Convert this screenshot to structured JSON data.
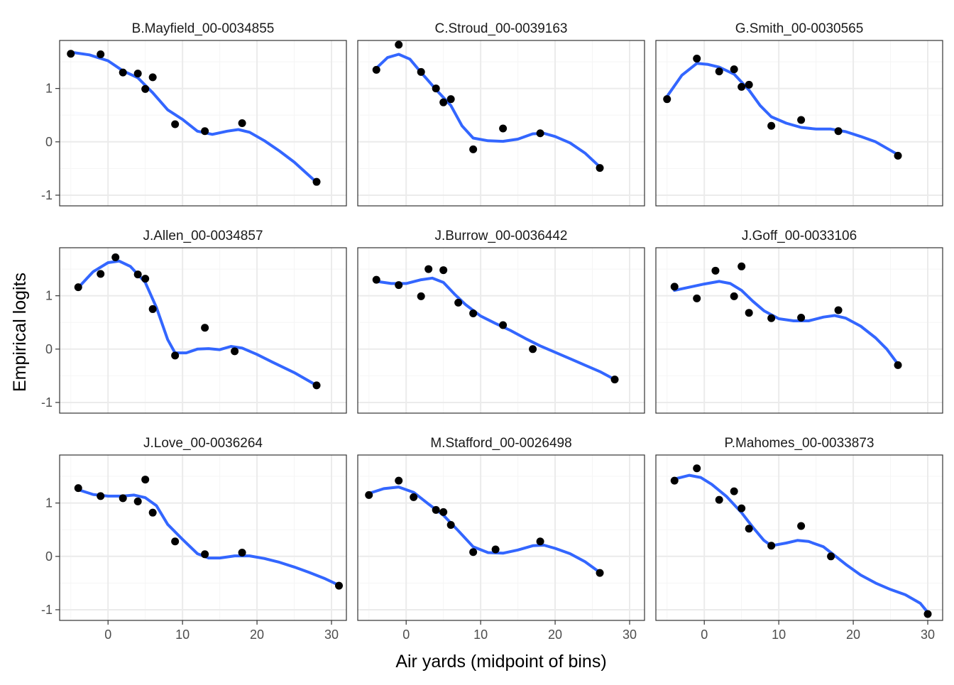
{
  "chart_data": {
    "type": "scatter",
    "layout": "facet-grid 3x3",
    "xlabel": "Air yards (midpoint of bins)",
    "ylabel": "Empirical logits",
    "xlim": [
      -6.5,
      32
    ],
    "ylim": [
      -1.2,
      1.9
    ],
    "x_ticks": [
      0,
      10,
      20,
      30
    ],
    "y_ticks": [
      -1,
      0,
      1
    ],
    "grid": true,
    "colors": {
      "points": "#000000",
      "smooth": "#3366FF",
      "panel_border": "#333333",
      "grid_major": "#EBEBEB",
      "grid_minor": "#F5F5F5"
    },
    "panels": [
      {
        "title": "B.Mayfield_00-0034855",
        "points": [
          [
            -5,
            1.65
          ],
          [
            -1,
            1.64
          ],
          [
            2,
            1.3
          ],
          [
            4,
            1.28
          ],
          [
            5,
            0.99
          ],
          [
            6,
            1.21
          ],
          [
            9,
            0.33
          ],
          [
            13,
            0.2
          ],
          [
            18,
            0.35
          ],
          [
            28,
            -0.75
          ]
        ],
        "smooth": [
          [
            -5,
            1.68
          ],
          [
            -2.5,
            1.63
          ],
          [
            0,
            1.52
          ],
          [
            2,
            1.33
          ],
          [
            4,
            1.2
          ],
          [
            6,
            0.92
          ],
          [
            8,
            0.6
          ],
          [
            10,
            0.42
          ],
          [
            12,
            0.2
          ],
          [
            14,
            0.14
          ],
          [
            16,
            0.2
          ],
          [
            17.5,
            0.23
          ],
          [
            19,
            0.18
          ],
          [
            21,
            0.02
          ],
          [
            23,
            -0.17
          ],
          [
            25,
            -0.38
          ],
          [
            28,
            -0.76
          ]
        ]
      },
      {
        "title": "C.Stroud_00-0039163",
        "points": [
          [
            -4,
            1.35
          ],
          [
            -1,
            1.82
          ],
          [
            2,
            1.31
          ],
          [
            4,
            1
          ],
          [
            5,
            0.74
          ],
          [
            6,
            0.8
          ],
          [
            9,
            -0.14
          ],
          [
            13,
            0.25
          ],
          [
            18,
            0.16
          ],
          [
            26,
            -0.49
          ]
        ],
        "smooth": [
          [
            -4,
            1.38
          ],
          [
            -2.5,
            1.58
          ],
          [
            -1,
            1.64
          ],
          [
            0.5,
            1.55
          ],
          [
            2,
            1.3
          ],
          [
            4,
            0.98
          ],
          [
            6,
            0.68
          ],
          [
            7.5,
            0.3
          ],
          [
            9,
            0.07
          ],
          [
            11,
            0.02
          ],
          [
            13,
            0.01
          ],
          [
            15,
            0.05
          ],
          [
            17,
            0.15
          ],
          [
            18.5,
            0.16
          ],
          [
            20,
            0.1
          ],
          [
            22,
            -0.02
          ],
          [
            24,
            -0.21
          ],
          [
            26,
            -0.47
          ]
        ]
      },
      {
        "title": "G.Smith_00-0030565",
        "points": [
          [
            -5,
            0.8
          ],
          [
            -1,
            1.56
          ],
          [
            2,
            1.32
          ],
          [
            4,
            1.36
          ],
          [
            5,
            1.03
          ],
          [
            6,
            1.07
          ],
          [
            9,
            0.3
          ],
          [
            13,
            0.41
          ],
          [
            18,
            0.2
          ],
          [
            26,
            -0.26
          ]
        ],
        "smooth": [
          [
            -5,
            0.85
          ],
          [
            -3,
            1.25
          ],
          [
            -1,
            1.47
          ],
          [
            0.5,
            1.45
          ],
          [
            2,
            1.4
          ],
          [
            4,
            1.27
          ],
          [
            6,
            0.97
          ],
          [
            7.5,
            0.68
          ],
          [
            9,
            0.47
          ],
          [
            11,
            0.35
          ],
          [
            13,
            0.27
          ],
          [
            15,
            0.24
          ],
          [
            17,
            0.24
          ],
          [
            19,
            0.19
          ],
          [
            21,
            0.1
          ],
          [
            23,
            0
          ],
          [
            26,
            -0.24
          ]
        ]
      },
      {
        "title": "J.Allen_00-0034857",
        "points": [
          [
            -4,
            1.16
          ],
          [
            -1,
            1.41
          ],
          [
            1,
            1.72
          ],
          [
            4,
            1.4
          ],
          [
            5,
            1.32
          ],
          [
            6,
            0.75
          ],
          [
            9,
            -0.12
          ],
          [
            13,
            0.4
          ],
          [
            17,
            -0.04
          ],
          [
            28,
            -0.68
          ]
        ],
        "smooth": [
          [
            -4,
            1.15
          ],
          [
            -2,
            1.45
          ],
          [
            0,
            1.62
          ],
          [
            1.5,
            1.65
          ],
          [
            3,
            1.55
          ],
          [
            5,
            1.25
          ],
          [
            6.5,
            0.78
          ],
          [
            8,
            0.18
          ],
          [
            9,
            -0.07
          ],
          [
            10.5,
            -0.07
          ],
          [
            12,
            0
          ],
          [
            13.5,
            0.01
          ],
          [
            15,
            -0.01
          ],
          [
            16.5,
            0.05
          ],
          [
            18,
            0.02
          ],
          [
            20,
            -0.1
          ],
          [
            22,
            -0.24
          ],
          [
            25,
            -0.44
          ],
          [
            28,
            -0.68
          ]
        ]
      },
      {
        "title": "J.Burrow_00-0036442",
        "points": [
          [
            -4,
            1.3
          ],
          [
            -1,
            1.2
          ],
          [
            2,
            0.99
          ],
          [
            3,
            1.5
          ],
          [
            5,
            1.48
          ],
          [
            7,
            0.87
          ],
          [
            9,
            0.67
          ],
          [
            13,
            0.45
          ],
          [
            17,
            0
          ],
          [
            28,
            -0.57
          ]
        ],
        "smooth": [
          [
            -4,
            1.27
          ],
          [
            -2,
            1.23
          ],
          [
            0,
            1.23
          ],
          [
            2,
            1.3
          ],
          [
            3.5,
            1.33
          ],
          [
            5,
            1.25
          ],
          [
            6.5,
            1.03
          ],
          [
            8,
            0.83
          ],
          [
            10,
            0.62
          ],
          [
            12,
            0.48
          ],
          [
            14,
            0.35
          ],
          [
            16,
            0.2
          ],
          [
            18,
            0.06
          ],
          [
            20,
            -0.06
          ],
          [
            22,
            -0.18
          ],
          [
            24,
            -0.3
          ],
          [
            26,
            -0.42
          ],
          [
            28,
            -0.57
          ]
        ]
      },
      {
        "title": "J.Goff_00-0033106",
        "points": [
          [
            -4,
            1.17
          ],
          [
            -1,
            0.95
          ],
          [
            1.5,
            1.47
          ],
          [
            4,
            0.99
          ],
          [
            5,
            1.55
          ],
          [
            6,
            0.68
          ],
          [
            9,
            0.58
          ],
          [
            13,
            0.59
          ],
          [
            18,
            0.73
          ],
          [
            26,
            -0.3
          ]
        ],
        "smooth": [
          [
            -4,
            1.1
          ],
          [
            -2,
            1.16
          ],
          [
            0,
            1.22
          ],
          [
            2,
            1.27
          ],
          [
            3.5,
            1.23
          ],
          [
            5,
            1.1
          ],
          [
            6.5,
            0.9
          ],
          [
            8,
            0.72
          ],
          [
            10,
            0.57
          ],
          [
            12,
            0.53
          ],
          [
            14,
            0.53
          ],
          [
            16,
            0.6
          ],
          [
            17.5,
            0.63
          ],
          [
            19,
            0.58
          ],
          [
            21,
            0.43
          ],
          [
            23,
            0.21
          ],
          [
            24.5,
            0
          ],
          [
            26,
            -0.28
          ]
        ]
      },
      {
        "title": "J.Love_00-0036264",
        "points": [
          [
            -4,
            1.28
          ],
          [
            -1,
            1.13
          ],
          [
            2,
            1.09
          ],
          [
            4,
            1.03
          ],
          [
            5,
            1.44
          ],
          [
            6,
            0.82
          ],
          [
            9,
            0.28
          ],
          [
            13,
            0.04
          ],
          [
            18,
            0.07
          ],
          [
            31,
            -0.55
          ]
        ],
        "smooth": [
          [
            -4,
            1.25
          ],
          [
            -2,
            1.16
          ],
          [
            0,
            1.13
          ],
          [
            2,
            1.13
          ],
          [
            3.5,
            1.15
          ],
          [
            5,
            1.1
          ],
          [
            6.5,
            0.95
          ],
          [
            8,
            0.6
          ],
          [
            10,
            0.32
          ],
          [
            12,
            0.05
          ],
          [
            13.5,
            -0.03
          ],
          [
            15,
            -0.03
          ],
          [
            17,
            0.01
          ],
          [
            19,
            0.01
          ],
          [
            21,
            -0.04
          ],
          [
            23,
            -0.11
          ],
          [
            25,
            -0.2
          ],
          [
            27,
            -0.3
          ],
          [
            29,
            -0.41
          ],
          [
            31,
            -0.54
          ]
        ]
      },
      {
        "title": "M.Stafford_00-0026498",
        "points": [
          [
            -5,
            1.15
          ],
          [
            -1,
            1.42
          ],
          [
            1,
            1.11
          ],
          [
            4,
            0.87
          ],
          [
            5,
            0.83
          ],
          [
            6,
            0.59
          ],
          [
            9,
            0.08
          ],
          [
            12,
            0.13
          ],
          [
            18,
            0.28
          ],
          [
            26,
            -0.31
          ]
        ],
        "smooth": [
          [
            -5,
            1.18
          ],
          [
            -3,
            1.27
          ],
          [
            -1,
            1.3
          ],
          [
            1,
            1.2
          ],
          [
            3,
            0.98
          ],
          [
            5,
            0.77
          ],
          [
            7,
            0.48
          ],
          [
            9,
            0.18
          ],
          [
            11,
            0.07
          ],
          [
            13,
            0.06
          ],
          [
            15,
            0.12
          ],
          [
            17,
            0.2
          ],
          [
            18.5,
            0.21
          ],
          [
            20,
            0.15
          ],
          [
            22,
            0.05
          ],
          [
            24,
            -0.1
          ],
          [
            26,
            -0.3
          ]
        ]
      },
      {
        "title": "P.Mahomes_00-0033873",
        "points": [
          [
            -4,
            1.42
          ],
          [
            -1,
            1.65
          ],
          [
            2,
            1.06
          ],
          [
            4,
            1.22
          ],
          [
            5,
            0.9
          ],
          [
            6,
            0.52
          ],
          [
            9,
            0.2
          ],
          [
            13,
            0.57
          ],
          [
            17,
            0
          ],
          [
            30,
            -1.08
          ]
        ],
        "smooth": [
          [
            -4,
            1.45
          ],
          [
            -2,
            1.52
          ],
          [
            -0.5,
            1.48
          ],
          [
            1,
            1.35
          ],
          [
            3,
            1.12
          ],
          [
            5,
            0.82
          ],
          [
            6.5,
            0.55
          ],
          [
            8,
            0.3
          ],
          [
            9,
            0.2
          ],
          [
            11,
            0.25
          ],
          [
            12.5,
            0.3
          ],
          [
            14,
            0.28
          ],
          [
            16,
            0.18
          ],
          [
            17,
            0.07
          ],
          [
            19,
            -0.15
          ],
          [
            21,
            -0.35
          ],
          [
            23,
            -0.5
          ],
          [
            25,
            -0.62
          ],
          [
            27,
            -0.72
          ],
          [
            29,
            -0.88
          ],
          [
            30,
            -1.05
          ]
        ]
      }
    ]
  }
}
